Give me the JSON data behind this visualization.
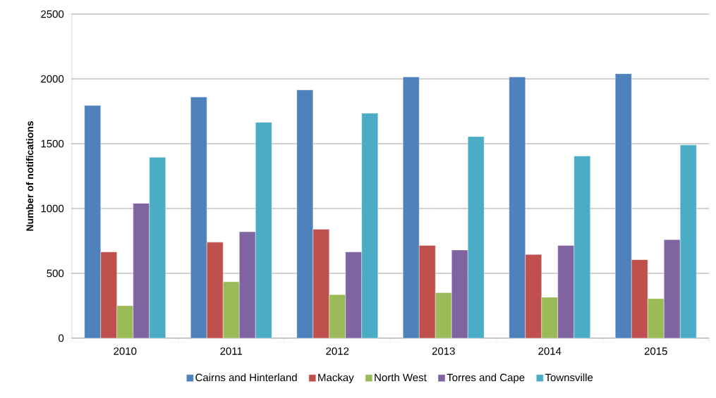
{
  "chart_data": {
    "type": "bar",
    "ylabel": "Number of notifications",
    "categories": [
      "2010",
      "2011",
      "2012",
      "2013",
      "2014",
      "2015"
    ],
    "series": [
      {
        "name": "Cairns and Hinterland",
        "color": "#4f81bd",
        "values": [
          1795,
          1860,
          1915,
          2015,
          2015,
          2040
        ]
      },
      {
        "name": "Mackay",
        "color": "#c0504d",
        "values": [
          665,
          740,
          840,
          715,
          645,
          605
        ]
      },
      {
        "name": "North West",
        "color": "#9bbb59",
        "values": [
          250,
          435,
          335,
          350,
          315,
          305
        ]
      },
      {
        "name": "Torres and Cape",
        "color": "#8064a2",
        "values": [
          1040,
          820,
          665,
          680,
          715,
          760
        ]
      },
      {
        "name": "Townsville",
        "color": "#4bacc6",
        "values": [
          1395,
          1665,
          1735,
          1555,
          1405,
          1490
        ]
      }
    ],
    "ylim": [
      0,
      2500
    ],
    "yticks": [
      0,
      500,
      1000,
      1500,
      2000,
      2500
    ],
    "grid": "y",
    "legend": "bottom"
  }
}
